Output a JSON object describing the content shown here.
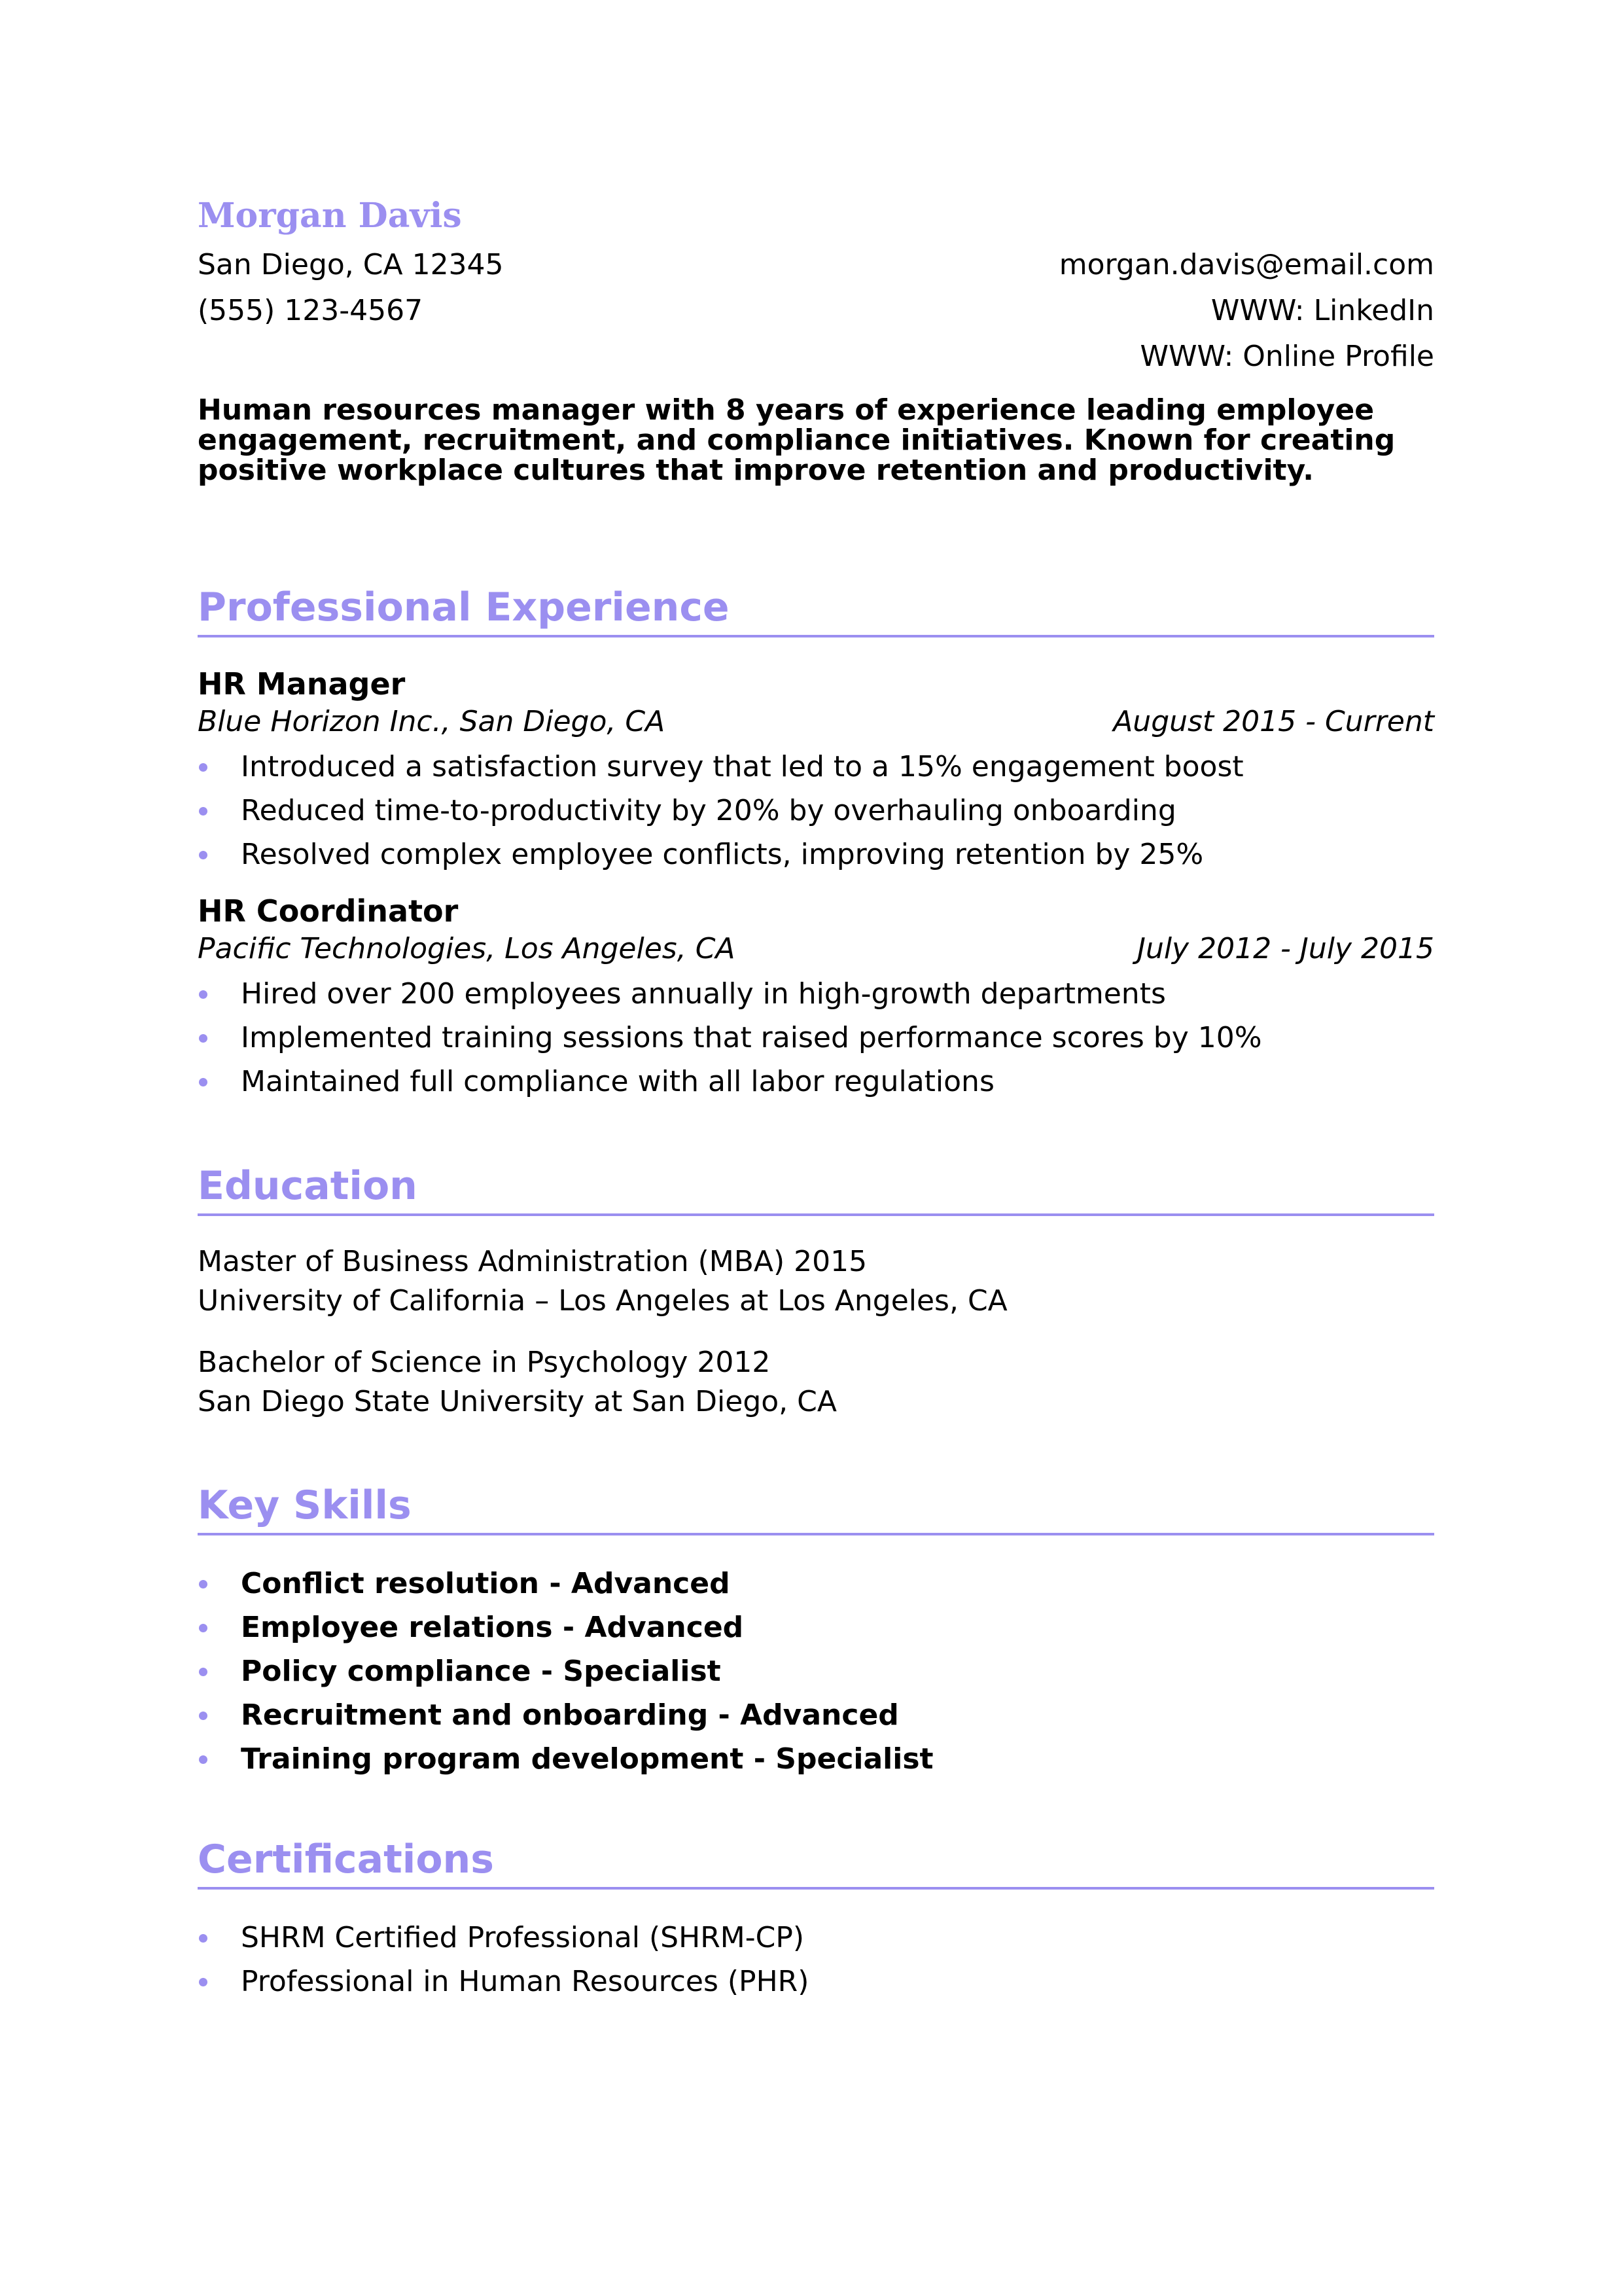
{
  "header": {
    "name": "Morgan Davis",
    "address": "San Diego, CA 12345",
    "phone": "(555) 123-4567",
    "email": "morgan.davis@email.com",
    "link1": "WWW: LinkedIn",
    "link2": "WWW: Online Profile"
  },
  "summary": "Human resources manager with 8 years of experience leading employee engagement, recruitment, and compliance initiatives. Known for creating positive workplace cultures that improve retention and productivity.",
  "experience": {
    "title": "Professional Experience",
    "jobs": [
      {
        "title": "HR Manager",
        "org": "Blue Horizon Inc., San Diego, CA",
        "dates": "August 2015 - Current",
        "bullets": [
          "Introduced a satisfaction survey that led to a 15% engagement boost",
          "Reduced time-to-productivity by 20% by overhauling onboarding",
          "Resolved complex employee conflicts, improving retention by 25%"
        ]
      },
      {
        "title": "HR Coordinator",
        "org": "Pacific Technologies, Los Angeles, CA",
        "dates": "July 2012 - July 2015",
        "bullets": [
          "Hired over 200 employees annually in high-growth departments",
          "Implemented training sessions that raised performance scores by 10%",
          "Maintained full compliance with all labor regulations"
        ]
      }
    ]
  },
  "education": {
    "title": "Education",
    "entries": [
      {
        "degree": "Master of Business Administration (MBA) 2015",
        "school": "University of California – Los Angeles at Los Angeles, CA"
      },
      {
        "degree": "Bachelor of Science in Psychology 2012",
        "school": "San Diego State University at San Diego, CA"
      }
    ]
  },
  "skills": {
    "title": "Key Skills",
    "items": [
      {
        "name": "Conflict resolution",
        "level": "Advanced"
      },
      {
        "name": "Employee relations",
        "level": "Advanced"
      },
      {
        "name": "Policy compliance",
        "level": "Specialist"
      },
      {
        "name": "Recruitment and onboarding",
        "level": "Advanced"
      },
      {
        "name": "Training program development",
        "level": "Specialist"
      }
    ],
    "separator": " - "
  },
  "certifications": {
    "title": "Certifications",
    "items": [
      "SHRM Certified Professional (SHRM-CP)",
      "Professional in Human Resources (PHR)"
    ]
  },
  "colors": {
    "accent": "#9b8ff0",
    "text": "#000000",
    "background": "#ffffff"
  }
}
